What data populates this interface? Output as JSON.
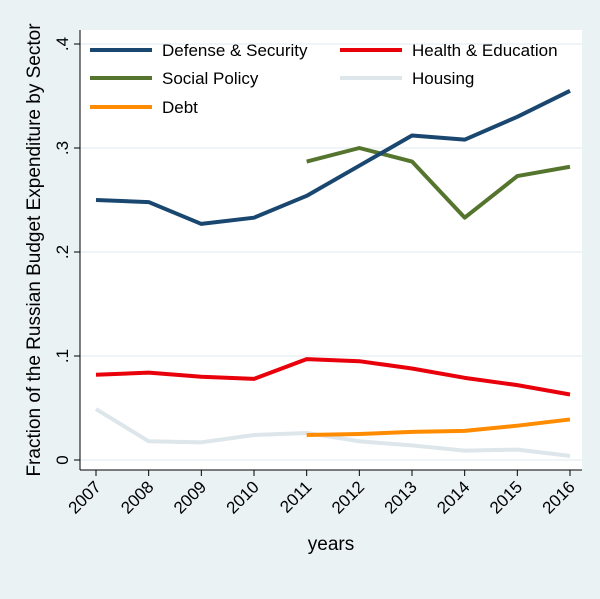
{
  "chart_data": {
    "type": "line",
    "title": "",
    "xlabel": "years",
    "ylabel": "Fraction of the Russian Budget Expenditure by Sector",
    "x": [
      2007,
      2008,
      2009,
      2010,
      2011,
      2012,
      2013,
      2014,
      2015,
      2016
    ],
    "x_tick_labels": [
      "2007",
      "2008",
      "2009",
      "2010",
      "2011",
      "2012",
      "2013",
      "2014",
      "2015",
      "2016"
    ],
    "xlim": [
      2007,
      2016
    ],
    "ylim": [
      0,
      0.4
    ],
    "y_ticks": [
      0,
      0.1,
      0.2,
      0.3,
      0.4
    ],
    "y_tick_labels": [
      "0",
      ".1",
      ".2",
      ".3",
      ".4"
    ],
    "grid": "horizontal",
    "legend_position": "top, inside plot",
    "background_color": "#eaf2f3",
    "plot_background_color": "#ffffff",
    "series": [
      {
        "name": "Defense & Security",
        "color": "#1a476f",
        "x": [
          2007,
          2008,
          2009,
          2010,
          2011,
          2012,
          2013,
          2014,
          2015,
          2016
        ],
        "values": [
          0.25,
          0.248,
          0.227,
          0.233,
          0.254,
          0.283,
          0.312,
          0.308,
          0.33,
          0.355
        ]
      },
      {
        "name": "Health & Education",
        "color": "#e8000b",
        "x": [
          2007,
          2008,
          2009,
          2010,
          2011,
          2012,
          2013,
          2014,
          2015,
          2016
        ],
        "values": [
          0.082,
          0.084,
          0.08,
          0.078,
          0.097,
          0.095,
          0.088,
          0.079,
          0.072,
          0.063
        ]
      },
      {
        "name": "Social Policy",
        "color": "#55752f",
        "x": [
          2011,
          2012,
          2013,
          2014,
          2015,
          2016
        ],
        "values": [
          0.287,
          0.3,
          0.287,
          0.233,
          0.273,
          0.282
        ]
      },
      {
        "name": "Housing",
        "color": "#dde6ea",
        "x": [
          2007,
          2008,
          2009,
          2010,
          2011,
          2012,
          2013,
          2014,
          2015,
          2016
        ],
        "values": [
          0.049,
          0.018,
          0.017,
          0.024,
          0.026,
          0.018,
          0.014,
          0.009,
          0.01,
          0.004
        ]
      },
      {
        "name": "Debt",
        "color": "#ff8c00",
        "x": [
          2011,
          2012,
          2013,
          2014,
          2015,
          2016
        ],
        "values": [
          0.024,
          0.025,
          0.027,
          0.028,
          0.033,
          0.039
        ]
      }
    ],
    "legend_layout": [
      [
        "Defense & Security",
        "Health & Education"
      ],
      [
        "Social Policy",
        "Housing"
      ],
      [
        "Debt"
      ]
    ]
  }
}
